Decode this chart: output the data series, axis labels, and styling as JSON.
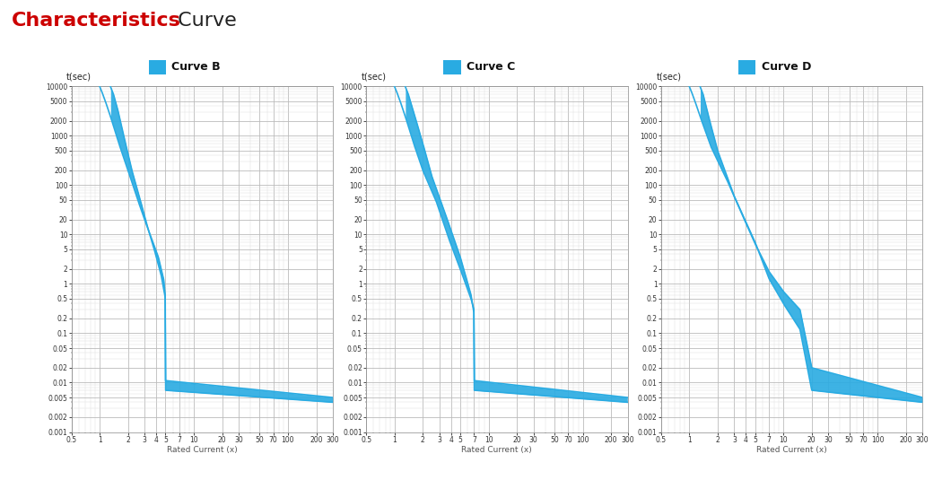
{
  "title_bold": "Characteristics",
  "title_normal": " Curve",
  "title_bold_color": "#cc0000",
  "title_normal_color": "#222222",
  "title_fontsize": 16,
  "curve_color": "#29abe2",
  "background_color": "#ffffff",
  "grid_major_color": "#bbbbbb",
  "grid_minor_color": "#dddddd",
  "subplot_titles": [
    "Curve B",
    "Curve C",
    "Curve D"
  ],
  "ylabel": "t(sec)",
  "xlabel": "Rated Current (x)",
  "yticks": [
    10000,
    5000,
    2000,
    1000,
    500,
    200,
    100,
    50,
    20,
    10,
    5,
    2,
    1,
    0.5,
    0.2,
    0.1,
    0.05,
    0.02,
    0.01,
    0.005,
    0.002,
    0.001
  ],
  "ytick_labels": [
    "10000",
    "5000",
    "2000",
    "1000",
    "500",
    "200",
    "100",
    "50",
    "20",
    "10",
    "5",
    "2",
    "1",
    "0.5",
    "0.2",
    "0.1",
    "0.05",
    "0.02",
    "0.01",
    "0.005",
    "0.002",
    "0.001"
  ],
  "xticks": [
    0.5,
    1,
    2,
    3,
    4,
    5,
    7,
    10,
    20,
    30,
    50,
    70,
    100,
    200,
    300
  ],
  "xtick_labels": [
    "0.5",
    "1",
    "2",
    "3",
    "4",
    "5",
    "7",
    "10",
    "20",
    "30",
    "50",
    "70",
    "100",
    "200",
    "300"
  ],
  "xticks_D": [
    0.5,
    1,
    2,
    3,
    4,
    5,
    7,
    10,
    20,
    30,
    50,
    70,
    100,
    200,
    300
  ],
  "xtick_labels_D": [
    "0.5",
    "1",
    "2",
    "3",
    "4",
    "5",
    "7",
    "10",
    "20",
    "30",
    "50",
    "70",
    "100",
    "200",
    "300"
  ],
  "xlim": [
    0.5,
    300
  ],
  "ylim": [
    0.001,
    10000
  ],
  "curveB_upper_x": [
    1.0,
    1.05,
    1.15,
    1.3,
    1.6,
    2.0,
    2.5,
    3.0,
    3.5,
    4.2,
    4.8,
    5.0,
    5.0,
    300
  ],
  "curveB_upper_y": [
    10000,
    8000,
    5000,
    2500,
    700,
    200,
    55,
    20,
    9,
    3.5,
    1.2,
    0.5,
    0.011,
    0.005
  ],
  "curveB_lower_x": [
    1.3,
    1.4,
    1.55,
    1.8,
    2.2,
    2.7,
    3.2,
    3.8,
    4.5,
    5.0,
    5.0,
    300
  ],
  "curveB_lower_y": [
    10000,
    7000,
    3500,
    1000,
    200,
    50,
    15,
    5,
    1.5,
    0.5,
    0.007,
    0.004
  ],
  "curveC_upper_x": [
    1.0,
    1.05,
    1.15,
    1.3,
    1.6,
    2.0,
    2.8,
    3.8,
    5.0,
    6.5,
    7.0,
    7.0,
    300
  ],
  "curveC_upper_y": [
    10000,
    8000,
    5000,
    2500,
    700,
    200,
    45,
    8,
    2.0,
    0.5,
    0.3,
    0.011,
    0.005
  ],
  "curveC_lower_x": [
    1.3,
    1.4,
    1.6,
    2.0,
    2.5,
    3.5,
    5.0,
    6.5,
    7.0,
    7.0,
    300
  ],
  "curveC_lower_y": [
    10000,
    7000,
    3000,
    700,
    150,
    25,
    3.5,
    0.6,
    0.25,
    0.007,
    0.004
  ],
  "curveD_upper_x": [
    1.0,
    1.05,
    1.15,
    1.3,
    1.7,
    2.5,
    3.5,
    5.0,
    7.0,
    10.0,
    15.0,
    20.0,
    20.0,
    300
  ],
  "curveD_upper_y": [
    10000,
    8000,
    5000,
    2500,
    600,
    130,
    30,
    6.5,
    1.8,
    0.7,
    0.3,
    0.02,
    0.02,
    0.005
  ],
  "curveD_lower_x": [
    1.3,
    1.4,
    1.6,
    2.0,
    3.0,
    5.0,
    7.0,
    10.0,
    15.0,
    20.0,
    20.0,
    300
  ],
  "curveD_lower_y": [
    10000,
    7000,
    2500,
    500,
    60,
    7,
    1.3,
    0.4,
    0.12,
    0.007,
    0.007,
    0.004
  ]
}
